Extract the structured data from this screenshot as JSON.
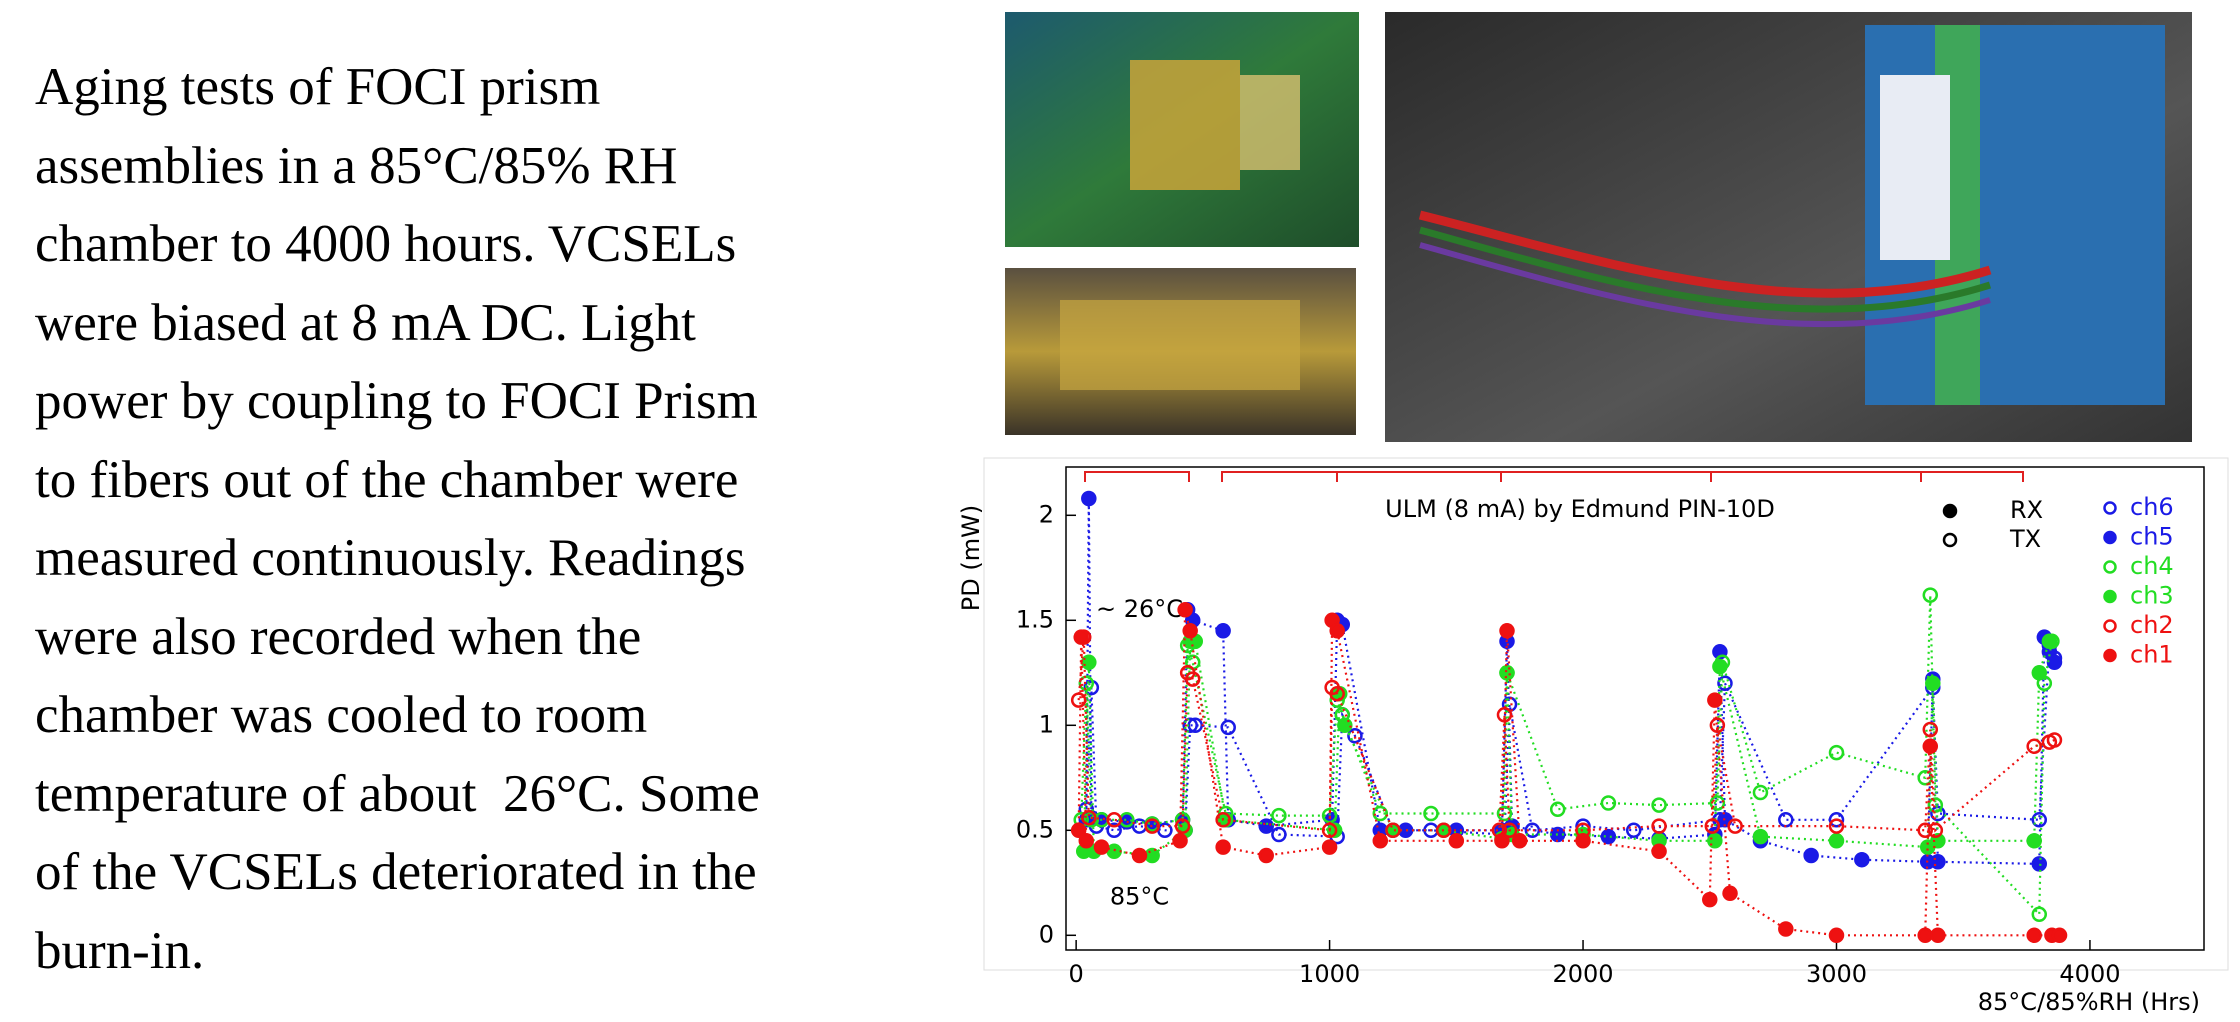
{
  "paragraph": {
    "lines": [
      "Aging tests of FOCI prism",
      "assemblies in a 85°C/85% RH",
      "chamber to 4000 hours. VCSELs",
      "were biased at 8 mA DC. Light",
      "power by coupling to FOCI Prism",
      "to fibers out of the chamber were",
      "measured continuously. Readings",
      "were also recorded when the",
      "chamber was cooled to room",
      "temperature of about  26°C. Some",
      "of the VCSELs deteriorated in the",
      "burn-in."
    ]
  },
  "chart_data": {
    "type": "scatter-line",
    "title": "ULM (8 mA) by Edmund PIN-10D",
    "x_label": "85°C/85%RH (Hrs)",
    "y_label": "PD (mW)",
    "annotations": [
      {
        "text": "~ 26°C",
        "x": 250,
        "y": 1.55
      },
      {
        "text": "85°C",
        "x": 250,
        "y": 0.18
      }
    ],
    "marker_legend": [
      {
        "label": "RX",
        "filled": true
      },
      {
        "label": "TX",
        "filled": false
      }
    ],
    "xlim": [
      -40,
      4450
    ],
    "ylim": [
      -0.07,
      2.23
    ],
    "xticks": [
      0,
      1000,
      2000,
      3000,
      4000
    ],
    "yticks": [
      0,
      0.5,
      1,
      1.5,
      2
    ],
    "grid": false,
    "series": [
      {
        "name": "ch6",
        "color": "#1a1ae6",
        "filled": false,
        "x": [
          40,
          60,
          80,
          150,
          250,
          350,
          430,
          450,
          470,
          600,
          800,
          1030,
          1050,
          1100,
          1250,
          1400,
          1690,
          1710,
          1800,
          2000,
          2200,
          2540,
          2560,
          2800,
          3000,
          3380,
          3400,
          3800,
          3840,
          3860
        ],
        "values": [
          0.6,
          1.18,
          0.52,
          0.5,
          0.52,
          0.5,
          0.5,
          1.0,
          1.0,
          0.99,
          0.48,
          0.47,
          1.05,
          0.95,
          0.5,
          0.5,
          0.48,
          1.1,
          0.5,
          0.52,
          0.5,
          0.55,
          1.2,
          0.55,
          0.55,
          1.18,
          0.58,
          0.55,
          1.38,
          1.32
        ]
      },
      {
        "name": "ch5",
        "color": "#1a1ae6",
        "filled": true,
        "x": [
          40,
          50,
          60,
          100,
          200,
          300,
          420,
          440,
          460,
          580,
          600,
          750,
          1010,
          1030,
          1050,
          1200,
          1300,
          1500,
          1680,
          1700,
          1720,
          1900,
          2100,
          2300,
          2520,
          2540,
          2560,
          2700,
          2900,
          3100,
          3360,
          3380,
          3400,
          3800,
          3820,
          3840,
          3860
        ],
        "values": [
          0.55,
          2.08,
          0.56,
          0.55,
          0.54,
          0.53,
          0.55,
          1.55,
          1.5,
          1.45,
          0.55,
          0.52,
          0.55,
          1.5,
          1.48,
          0.5,
          0.5,
          0.5,
          0.5,
          1.4,
          0.52,
          0.48,
          0.47,
          0.46,
          0.48,
          1.35,
          0.55,
          0.45,
          0.38,
          0.36,
          0.35,
          1.22,
          0.35,
          0.34,
          1.42,
          1.35,
          1.3
        ]
      },
      {
        "name": "ch4",
        "color": "#22dd22",
        "filled": false,
        "x": [
          20,
          40,
          60,
          100,
          200,
          300,
          420,
          440,
          460,
          590,
          800,
          1000,
          1030,
          1050,
          1200,
          1400,
          1690,
          1700,
          1900,
          2100,
          2300,
          2530,
          2550,
          2700,
          3000,
          3350,
          3370,
          3390,
          3800,
          3820,
          3850
        ],
        "values": [
          0.55,
          1.2,
          0.55,
          0.55,
          0.55,
          0.53,
          0.55,
          1.38,
          1.3,
          0.58,
          0.57,
          0.57,
          1.12,
          1.05,
          0.58,
          0.58,
          0.58,
          1.25,
          0.6,
          0.63,
          0.62,
          0.63,
          1.3,
          0.68,
          0.87,
          0.75,
          1.62,
          0.62,
          0.1,
          1.2,
          1.4
        ]
      },
      {
        "name": "ch3",
        "color": "#22dd22",
        "filled": true,
        "x": [
          30,
          50,
          70,
          150,
          300,
          430,
          450,
          470,
          590,
          1020,
          1040,
          1060,
          1250,
          1450,
          1680,
          1700,
          1720,
          2000,
          2300,
          2520,
          2540,
          2700,
          3000,
          3360,
          3380,
          3400,
          3780,
          3800,
          3840
        ],
        "values": [
          0.4,
          1.3,
          0.4,
          0.4,
          0.38,
          0.5,
          1.4,
          1.4,
          0.55,
          0.5,
          1.15,
          1.0,
          0.5,
          0.5,
          0.46,
          1.25,
          0.48,
          0.48,
          0.45,
          0.45,
          1.28,
          0.47,
          0.45,
          0.42,
          1.2,
          0.45,
          0.45,
          1.25,
          1.4
        ]
      },
      {
        "name": "ch2",
        "color": "#ee1111",
        "filled": false,
        "x": [
          10,
          30,
          50,
          150,
          300,
          420,
          440,
          460,
          580,
          1000,
          1010,
          1030,
          1250,
          1450,
          1670,
          1690,
          1710,
          2000,
          2300,
          2510,
          2530,
          2600,
          3000,
          3350,
          3370,
          3390,
          3780,
          3840,
          3860
        ],
        "values": [
          1.12,
          1.42,
          0.56,
          0.55,
          0.52,
          0.52,
          1.25,
          1.22,
          0.55,
          0.5,
          1.18,
          1.15,
          0.5,
          0.5,
          0.5,
          1.05,
          0.5,
          0.5,
          0.52,
          0.52,
          1.0,
          0.52,
          0.52,
          0.5,
          0.98,
          0.5,
          0.9,
          0.92,
          0.93
        ]
      },
      {
        "name": "ch1",
        "color": "#ee1111",
        "filled": true,
        "x": [
          10,
          20,
          40,
          100,
          250,
          410,
          430,
          450,
          580,
          750,
          1000,
          1010,
          1030,
          1200,
          1500,
          1680,
          1700,
          1750,
          2000,
          2300,
          2500,
          2520,
          2580,
          2800,
          3000,
          3350,
          3370,
          3400,
          3780,
          3850,
          3880
        ],
        "values": [
          0.5,
          1.42,
          0.45,
          0.42,
          0.38,
          0.45,
          1.55,
          1.45,
          0.42,
          0.38,
          0.42,
          1.5,
          1.45,
          0.45,
          0.45,
          0.45,
          1.45,
          0.45,
          0.45,
          0.4,
          0.17,
          1.12,
          0.2,
          0.03,
          0,
          0,
          0.9,
          0,
          0,
          0,
          0
        ]
      }
    ]
  }
}
